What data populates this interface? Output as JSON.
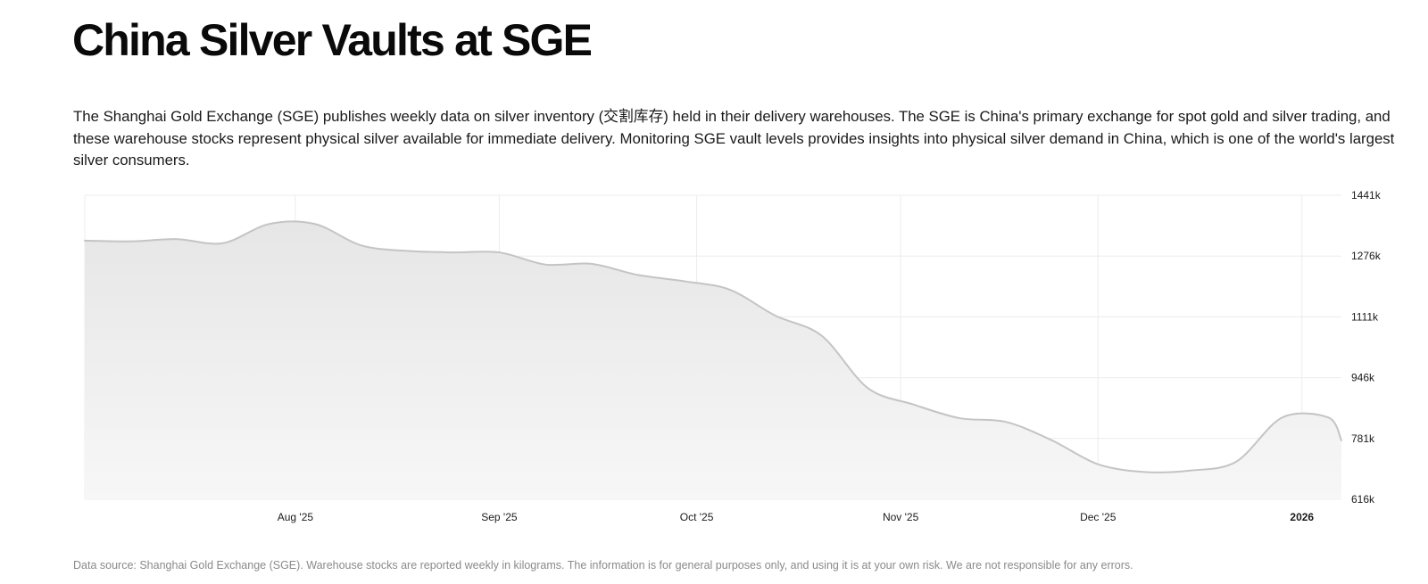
{
  "page": {
    "title": "China Silver Vaults at SGE",
    "description": "The Shanghai Gold Exchange (SGE) publishes weekly data on silver inventory (交割库存) held in their delivery warehouses. The SGE is China's primary exchange for spot gold and silver trading, and these warehouse stocks represent physical silver available for immediate delivery. Monitoring SGE vault levels provides insights into physical silver demand in China, which is one of the world's largest silver consumers.",
    "footnote": "Data source: Shanghai Gold Exchange (SGE). Warehouse stocks are reported weekly in kilograms. The information is for general purposes only, and using it is at your own risk. We are not responsible for any errors."
  },
  "colors": {
    "line": "#c4c4c4",
    "area_top": "#e6e6e6",
    "area_bottom": "#f7f7f7",
    "grid": "#ececec"
  },
  "chart_data": {
    "type": "area",
    "title": "",
    "xlabel": "",
    "ylabel": "",
    "unit": "kg",
    "x_type": "date",
    "xlim": [
      "2025-06-30",
      "2026-01-07"
    ],
    "ylim": [
      616,
      1441
    ],
    "y_ticks": [
      1441,
      1276,
      1111,
      946,
      781,
      616
    ],
    "y_tick_labels": [
      "1441k",
      "1276k",
      "1111k",
      "946k",
      "781k",
      "616k"
    ],
    "x_ticks": [
      {
        "date": "2025-08-01",
        "label": "Aug '25",
        "bold": false
      },
      {
        "date": "2025-09-01",
        "label": "Sep '25",
        "bold": false
      },
      {
        "date": "2025-10-01",
        "label": "Oct '25",
        "bold": false
      },
      {
        "date": "2025-11-01",
        "label": "Nov '25",
        "bold": false
      },
      {
        "date": "2025-12-01",
        "label": "Dec '25",
        "bold": false
      },
      {
        "date": "2026-01-01",
        "label": "2026",
        "bold": true
      }
    ],
    "grid": true,
    "legend": "none",
    "series": [
      {
        "values": [
          {
            "x": "2025-06-30",
            "y": 1318
          },
          {
            "x": "2025-07-07",
            "y": 1316
          },
          {
            "x": "2025-07-14",
            "y": 1322
          },
          {
            "x": "2025-07-21",
            "y": 1311
          },
          {
            "x": "2025-07-28",
            "y": 1363
          },
          {
            "x": "2025-08-04",
            "y": 1363
          },
          {
            "x": "2025-08-11",
            "y": 1305
          },
          {
            "x": "2025-08-18",
            "y": 1290
          },
          {
            "x": "2025-08-25",
            "y": 1286
          },
          {
            "x": "2025-09-01",
            "y": 1286
          },
          {
            "x": "2025-09-08",
            "y": 1253
          },
          {
            "x": "2025-09-15",
            "y": 1255
          },
          {
            "x": "2025-09-22",
            "y": 1225
          },
          {
            "x": "2025-09-29",
            "y": 1208
          },
          {
            "x": "2025-10-06",
            "y": 1185
          },
          {
            "x": "2025-10-13",
            "y": 1114
          },
          {
            "x": "2025-10-20",
            "y": 1060
          },
          {
            "x": "2025-10-27",
            "y": 918
          },
          {
            "x": "2025-11-03",
            "y": 873
          },
          {
            "x": "2025-11-10",
            "y": 836
          },
          {
            "x": "2025-11-17",
            "y": 826
          },
          {
            "x": "2025-11-24",
            "y": 776
          },
          {
            "x": "2025-12-01",
            "y": 711
          },
          {
            "x": "2025-12-08",
            "y": 690
          },
          {
            "x": "2025-12-15",
            "y": 694
          },
          {
            "x": "2025-12-22",
            "y": 718
          },
          {
            "x": "2025-12-29",
            "y": 838
          },
          {
            "x": "2026-01-05",
            "y": 838
          },
          {
            "x": "2026-01-07",
            "y": 776
          }
        ]
      }
    ]
  }
}
